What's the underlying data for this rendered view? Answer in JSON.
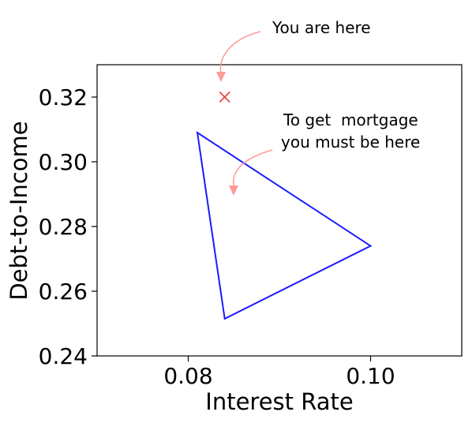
{
  "chart_data": {
    "type": "scatter",
    "xlabel": "Interest Rate",
    "ylabel": "Debt-to-Income",
    "xlim": [
      0.07,
      0.11
    ],
    "ylim": [
      0.24,
      0.33
    ],
    "x_ticks": [
      0.08,
      0.1
    ],
    "x_tick_labels": [
      "0.08",
      "0.10"
    ],
    "y_ticks": [
      0.24,
      0.26,
      0.28,
      0.3,
      0.32
    ],
    "y_tick_labels": [
      "0.24",
      "0.26",
      "0.28",
      "0.30",
      "0.32"
    ],
    "grid": false,
    "current_point": {
      "x": 0.084,
      "y": 0.32,
      "marker": "x",
      "color": "#e83b3b"
    },
    "region": {
      "shape": "triangle",
      "color": "#1a1aff",
      "points": [
        {
          "x": 0.081,
          "y": 0.309
        },
        {
          "x": 0.1,
          "y": 0.274
        },
        {
          "x": 0.084,
          "y": 0.2515
        }
      ]
    },
    "annotations": [
      {
        "text_lines": [
          "You are here"
        ],
        "arrow_color": "#ff9a9a"
      },
      {
        "text_lines": [
          "To get  mortgage",
          "you must be here"
        ],
        "arrow_color": "#ff9a9a"
      }
    ]
  }
}
